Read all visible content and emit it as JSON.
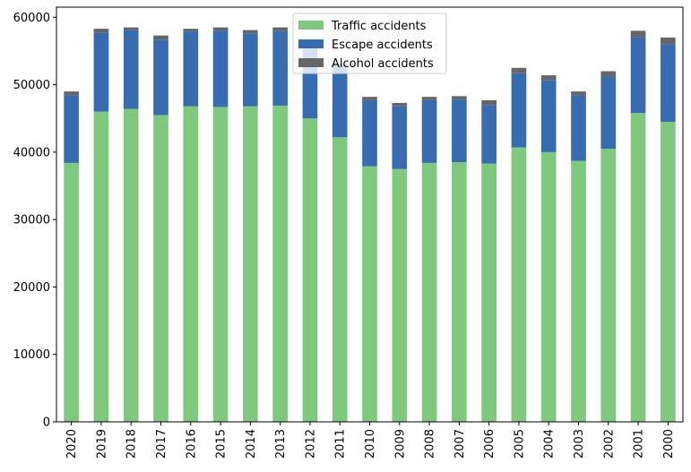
{
  "chart_data": {
    "type": "bar",
    "stacked": true,
    "categories": [
      "2020",
      "2019",
      "2018",
      "2017",
      "2016",
      "2015",
      "2014",
      "2013",
      "2012",
      "2011",
      "2010",
      "2009",
      "2008",
      "2007",
      "2006",
      "2005",
      "2004",
      "2003",
      "2002",
      "2001",
      "2000"
    ],
    "series": [
      {
        "name": "Traffic accidents",
        "color": "#7fc97f",
        "values": [
          38400,
          46000,
          46400,
          45500,
          46800,
          46700,
          46800,
          46900,
          45000,
          42200,
          37900,
          37500,
          38400,
          38500,
          38300,
          40700,
          40000,
          38700,
          40500,
          45800,
          44500
        ]
      },
      {
        "name": "Escape accidents",
        "color": "#386cb0",
        "values": [
          10000,
          11700,
          11700,
          11200,
          11100,
          11300,
          10800,
          11100,
          10500,
          10600,
          9800,
          9300,
          9300,
          9300,
          8600,
          11000,
          10700,
          9700,
          10700,
          11300,
          11500
        ]
      },
      {
        "name": "Alcohol accidents",
        "color": "#666666",
        "values": [
          600,
          600,
          400,
          600,
          400,
          500,
          500,
          500,
          400,
          400,
          500,
          500,
          500,
          500,
          800,
          800,
          700,
          600,
          800,
          900,
          1000
        ]
      }
    ],
    "title": "",
    "xlabel": "",
    "ylabel": "",
    "ylim": [
      0,
      61500
    ],
    "yticks": [
      0,
      10000,
      20000,
      30000,
      40000,
      50000,
      60000
    ],
    "grid": false,
    "legend_position": "top-center"
  }
}
